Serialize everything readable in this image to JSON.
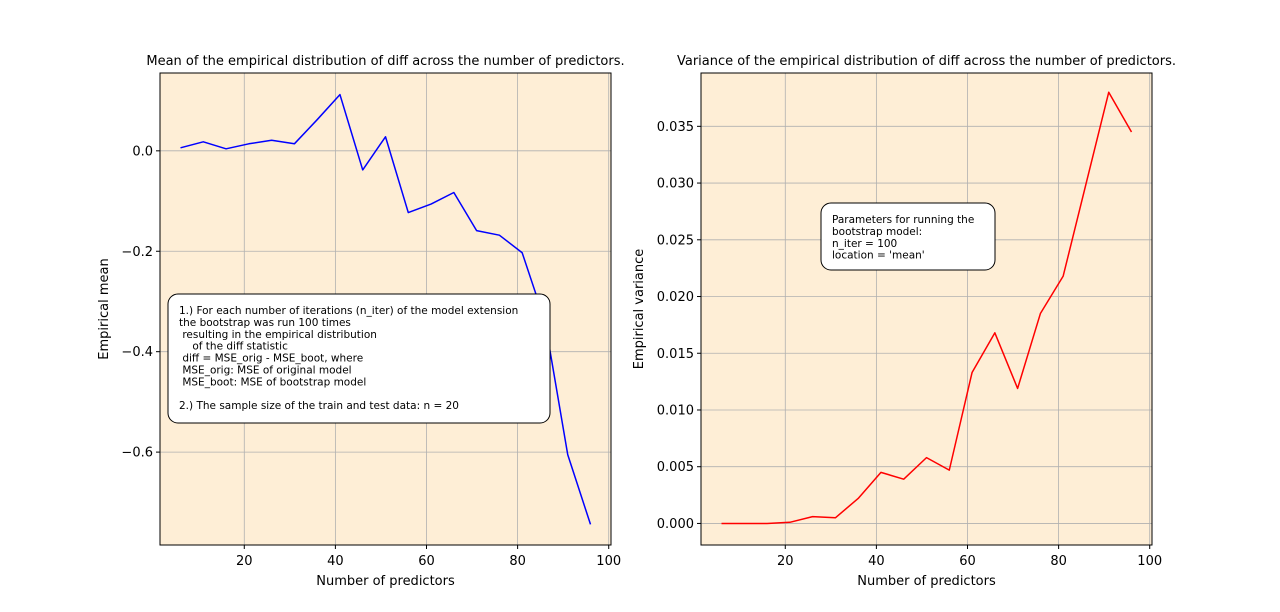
{
  "chart_data": [
    {
      "type": "line",
      "title": "Mean of the empirical distribution of diff across the number of predictors.",
      "xlabel": "Number of predictors",
      "ylabel": "Empirical mean",
      "xlim": [
        1.5,
        100.5
      ],
      "ylim": [
        -0.785,
        0.155
      ],
      "xticks": [
        20,
        40,
        60,
        80,
        100
      ],
      "yticks": [
        0.0,
        -0.2,
        -0.4,
        -0.6
      ],
      "ytick_labels": [
        "0.0",
        "−0.2",
        "−0.4",
        "−0.6"
      ],
      "grid": true,
      "background": "#feeed6",
      "line_color": "#0000ff",
      "series": [
        {
          "x": [
            6,
            11,
            16,
            21,
            26,
            31,
            36,
            41,
            46,
            51,
            56,
            61,
            66,
            71,
            76,
            81,
            86,
            91,
            96
          ],
          "values": [
            0.006,
            0.018,
            0.004,
            0.014,
            0.021,
            0.014,
            0.062,
            0.112,
            -0.038,
            0.028,
            -0.123,
            -0.106,
            -0.083,
            -0.159,
            -0.168,
            -0.203,
            -0.339,
            -0.605,
            -0.744
          ]
        }
      ],
      "annotation": {
        "lines": [
          "1.) For each number of iterations (n_iter) of the model extension",
          "the bootstrap was run 100 times",
          " resulting in the empirical distribution",
          "    of the diff statistic",
          " diff = MSE_orig - MSE_boot, where",
          " MSE_orig: MSE of original model",
          " MSE_boot: MSE of bootstrap model",
          "",
          "2.) The sample size of the train and test data: n = 20"
        ]
      }
    },
    {
      "type": "line",
      "title": "Variance of the empirical distribution of diff across the number of predictors.",
      "xlabel": "Number of predictors",
      "ylabel": "Empirical variance",
      "xlim": [
        1.5,
        100.5
      ],
      "ylim": [
        -0.0019,
        0.0397
      ],
      "xticks": [
        20,
        40,
        60,
        80,
        100
      ],
      "yticks": [
        0.0,
        0.005,
        0.01,
        0.015,
        0.02,
        0.025,
        0.03,
        0.035
      ],
      "ytick_labels": [
        "0.000",
        "0.005",
        "0.010",
        "0.015",
        "0.020",
        "0.025",
        "0.030",
        "0.035"
      ],
      "grid": true,
      "background": "#feeed6",
      "line_color": "#ff0000",
      "series": [
        {
          "x": [
            6,
            11,
            16,
            21,
            26,
            31,
            36,
            41,
            46,
            51,
            56,
            61,
            66,
            71,
            76,
            81,
            86,
            91,
            96
          ],
          "values": [
            0.0,
            0.0,
            0.0,
            0.0001,
            0.0006,
            0.0005,
            0.0022,
            0.0045,
            0.0039,
            0.0058,
            0.0047,
            0.0133,
            0.0168,
            0.0119,
            0.0185,
            0.0218,
            0.0299,
            0.038,
            0.0345
          ]
        }
      ],
      "annotation": {
        "lines": [
          "Parameters for running the",
          "bootstrap model:",
          "n_iter = 100",
          "location = 'mean'"
        ]
      }
    }
  ]
}
